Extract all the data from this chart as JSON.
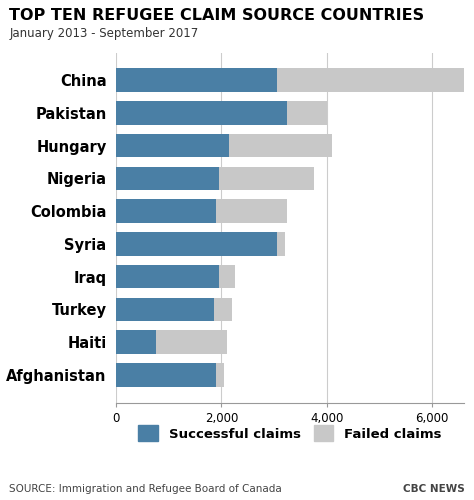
{
  "title": "TOP TEN REFUGEE CLAIM SOURCE COUNTRIES",
  "subtitle": "January 2013 - September 2017",
  "countries": [
    "China",
    "Pakistan",
    "Hungary",
    "Nigeria",
    "Colombia",
    "Syria",
    "Iraq",
    "Turkey",
    "Haiti",
    "Afghanistan"
  ],
  "successful": [
    3050,
    3250,
    2150,
    1950,
    1900,
    3050,
    1950,
    1850,
    750,
    1900
  ],
  "failed": [
    3550,
    750,
    1950,
    1800,
    1350,
    150,
    300,
    350,
    1350,
    150
  ],
  "successful_color": "#4a7fa5",
  "failed_color": "#c8c8c8",
  "xlim": [
    0,
    6600
  ],
  "xticks": [
    0,
    2000,
    4000,
    6000
  ],
  "xlabel_successful": "Successful claims",
  "xlabel_failed": "Failed claims",
  "source_text": "SOURCE: Immigration and Refugee Board of Canada",
  "brand_text": "CBC NEWS",
  "bg_color": "#ffffff",
  "title_fontsize": 11.5,
  "subtitle_fontsize": 8.5,
  "label_fontsize": 10.5,
  "tick_fontsize": 8.5,
  "legend_fontsize": 9.5,
  "source_fontsize": 7.5
}
